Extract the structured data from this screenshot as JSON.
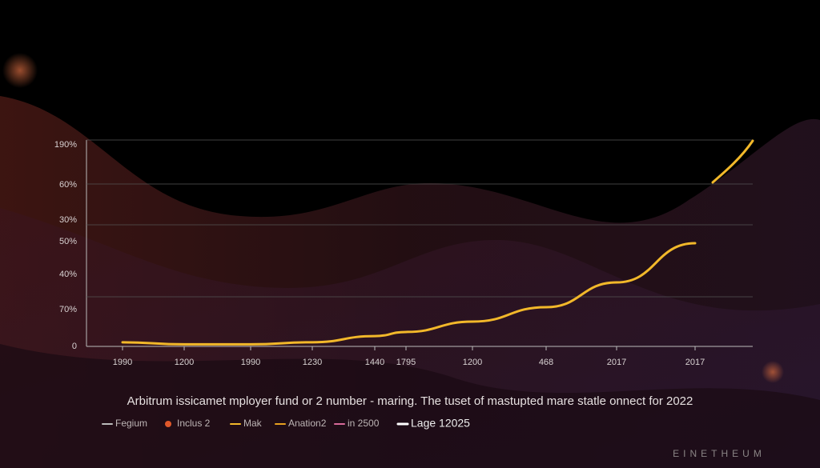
{
  "chart_data": {
    "type": "line",
    "caption": "Arbitrum issicamet mployer fund or 2 number - maring. The tuset of mastupted mare statle onnect for 2022",
    "categories": [
      "1990",
      "1200",
      "1990",
      "1230",
      "1440",
      "1795",
      "1200",
      "468",
      "2017",
      "2017"
    ],
    "y_labels": [
      "190%",
      "60%",
      "30%",
      "50%",
      "40%",
      "70%",
      "0"
    ],
    "ylim": [
      0,
      100
    ],
    "series": [
      {
        "name": "Mak",
        "color": "#f2b82a",
        "values": [
          2,
          1,
          1,
          2,
          5,
          7,
          12,
          19,
          31,
          50
        ]
      }
    ],
    "legend": [
      {
        "name": "Fegium",
        "color": "#bbbbbb"
      },
      {
        "name": "Inclus 2",
        "color": "#e0582a"
      },
      {
        "name": "Mak",
        "color": "#f2b82a"
      },
      {
        "name": "Anation2",
        "color": "#e8a020"
      },
      {
        "name": "in 2500",
        "color": "#d86a9a"
      },
      {
        "name": "Lage 12025",
        "color": "#ffffff"
      }
    ]
  },
  "watermark": "EINETHEUM"
}
